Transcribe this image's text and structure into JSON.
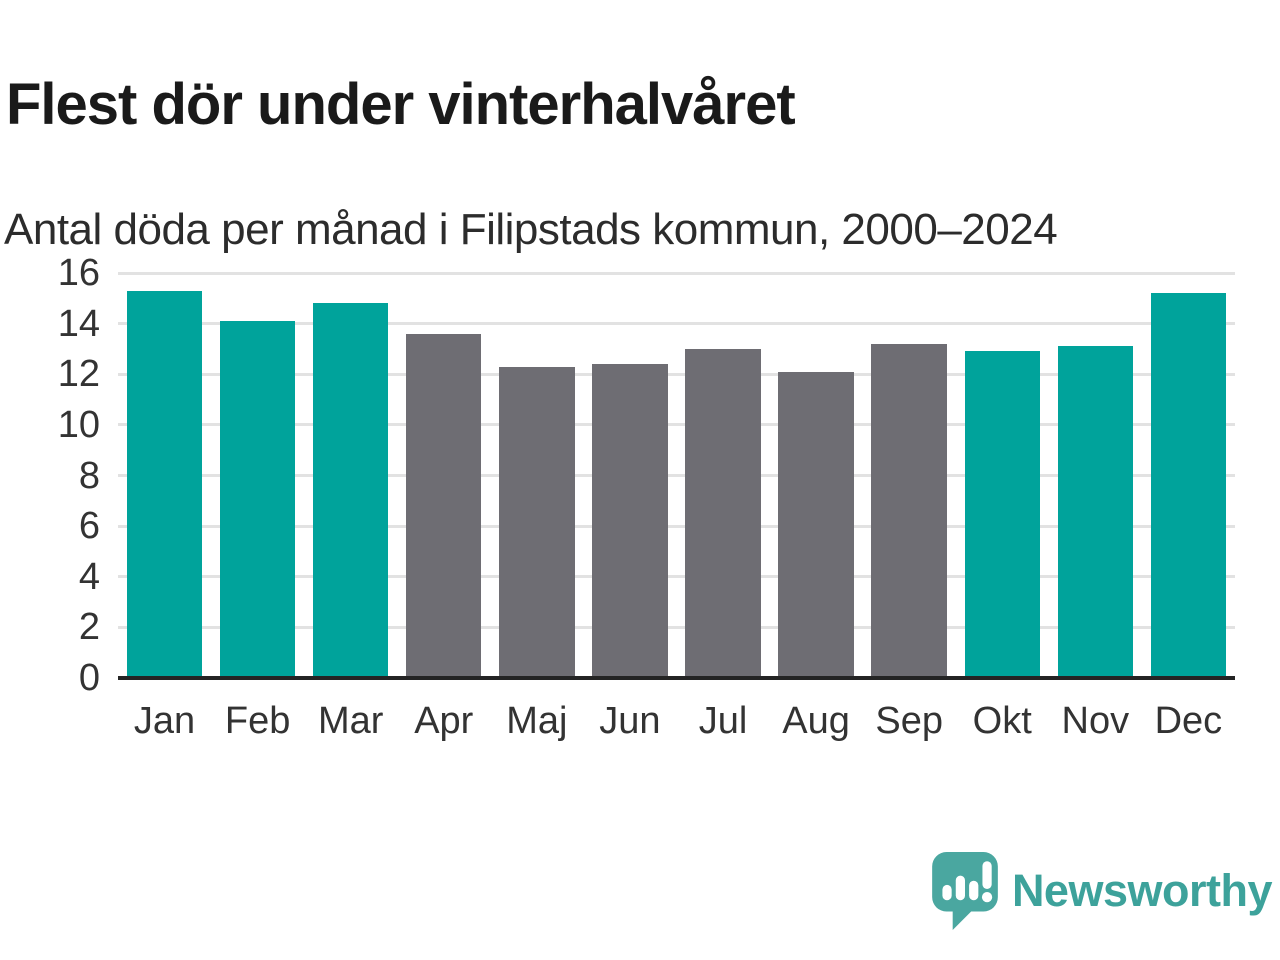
{
  "title": "Flest dör under vinterhalvåret",
  "subtitle": "Antal döda per månad i Filipstads kommun, 2000–2024",
  "chart_data": {
    "type": "bar",
    "title": "Flest dör under vinterhalvåret",
    "subtitle": "Antal döda per månad i Filipstads kommun, 2000–2024",
    "categories": [
      "Jan",
      "Feb",
      "Mar",
      "Apr",
      "Maj",
      "Jun",
      "Jul",
      "Aug",
      "Sep",
      "Okt",
      "Nov",
      "Dec"
    ],
    "values": [
      15.3,
      14.1,
      14.8,
      13.6,
      12.3,
      12.4,
      13.0,
      12.1,
      13.2,
      12.9,
      13.1,
      15.2
    ],
    "bar_groups": [
      "winter",
      "winter",
      "winter",
      "summer",
      "summer",
      "summer",
      "summer",
      "summer",
      "summer",
      "winter",
      "winter",
      "winter"
    ],
    "xlabel": "",
    "ylabel": "",
    "ylim": [
      0,
      16
    ],
    "yticks": [
      0,
      2,
      4,
      6,
      8,
      10,
      12,
      14,
      16
    ],
    "grid": true,
    "legend": "none"
  },
  "colors": {
    "winter_bar": "#00a39b",
    "summer_bar": "#6e6d73",
    "gridline": "#e2e2e2",
    "axis_line": "#242424",
    "tick_text": "#333333",
    "title_text": "#1a1a1a",
    "subtitle_text": "#2c2c2c",
    "brand_teal": "#3da29b",
    "brand_bubble": "#4aa7a0"
  },
  "branding": {
    "logo_text": "Newsworthy",
    "logo_icon": "speech-bubble-bar-chart-icon"
  }
}
